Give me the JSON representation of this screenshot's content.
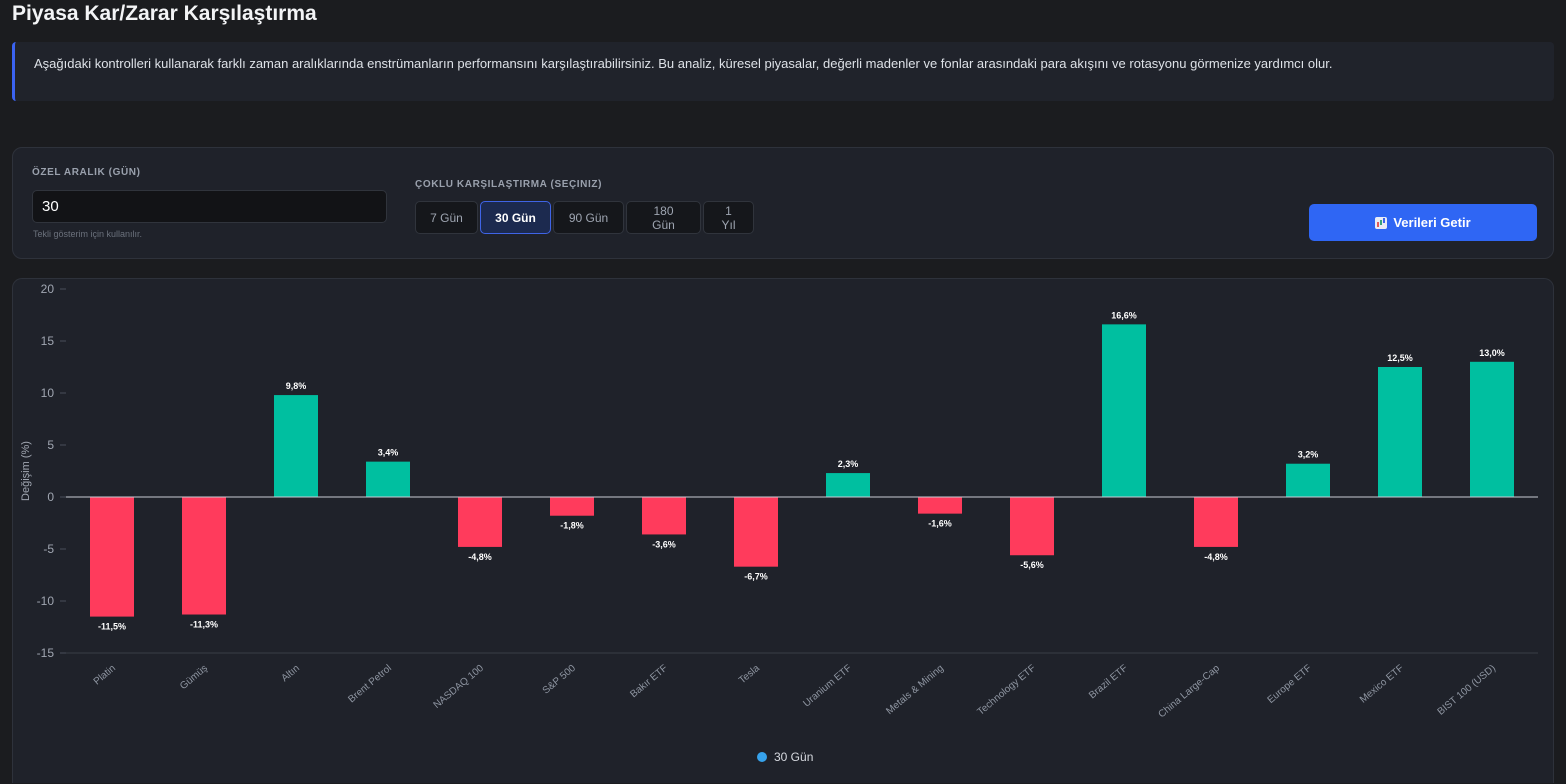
{
  "page": {
    "title": "Piyasa Kar/Zarar Karşılaştırma"
  },
  "info": {
    "text": "Aşağıdaki kontrolleri kullanarak farklı zaman aralıklarında enstrümanların performansını karşılaştırabilirsiniz. Bu analiz, küresel piyasalar, değerli madenler ve fonlar arasındaki para akışını ve rotasyonu görmenize yardımcı olur."
  },
  "controls": {
    "custom_range_label": "ÖZEL ARALIK (GÜN)",
    "custom_range_value": "30",
    "custom_range_hint": "Tekli gösterim için kullanılır.",
    "multi_label": "ÇOKLU KARŞILAŞTIRMA (SEÇINIZ)",
    "periods": [
      {
        "label": "7 Gün",
        "active": false
      },
      {
        "label": "30 Gün",
        "active": true
      },
      {
        "label": "90 Gün",
        "active": false
      },
      {
        "label": "180 Gün",
        "active": false
      },
      {
        "label": "1 Yıl",
        "active": false
      }
    ],
    "fetch_label": "Verileri Getir",
    "fetch_icon": "bar-chart-icon"
  },
  "colors": {
    "positive": "#00bfa0",
    "negative": "#ff3b5c",
    "legend_dot": "#36a2eb",
    "accent": "#2f66f4"
  },
  "chart_data": {
    "type": "bar",
    "ylabel": "Değişim (%)",
    "ylim": [
      -15,
      20
    ],
    "yticks": [
      20,
      15,
      10,
      5,
      0,
      -5,
      -10,
      -15
    ],
    "categories": [
      "Platin",
      "Gümüş",
      "Altın",
      "Brent Petrol",
      "NASDAQ 100",
      "S&P 500",
      "Bakır ETF",
      "Tesla",
      "Uranium ETF",
      "Metals & Mining",
      "Technology ETF",
      "Brazil ETF",
      "China Large-Cap",
      "Europe ETF",
      "Mexico ETF",
      "BIST 100 (USD)"
    ],
    "series": [
      {
        "name": "30 Gün",
        "values": [
          -11.5,
          -11.3,
          9.8,
          3.4,
          -4.8,
          -1.8,
          -3.6,
          -6.7,
          2.3,
          -1.6,
          -5.6,
          16.6,
          -4.8,
          3.2,
          12.5,
          13.0
        ],
        "labels": [
          "-11,5%",
          "-11,3%",
          "9,8%",
          "3,4%",
          "-4,8%",
          "-1,8%",
          "-3,6%",
          "-6,7%",
          "2,3%",
          "-1,6%",
          "-5,6%",
          "16,6%",
          "-4,8%",
          "3,2%",
          "12,5%",
          "13,0%"
        ]
      }
    ],
    "legend_position": "bottom-center",
    "grid": false
  }
}
